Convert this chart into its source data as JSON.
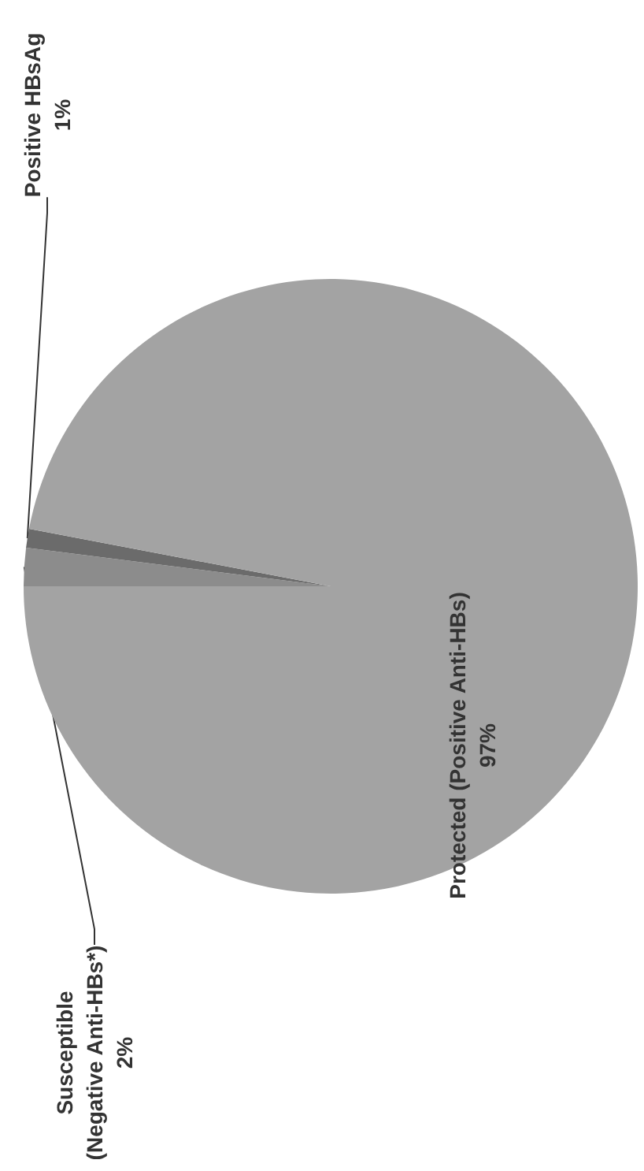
{
  "chart_data": {
    "type": "pie",
    "categories": [
      "Susceptible\n(Negative Anti-HBs*)",
      "Positive HBsAg",
      "Protected (Positive Anti-HBs)"
    ],
    "values": [
      2,
      1,
      97
    ],
    "value_labels": [
      "2%",
      "1%",
      "97%"
    ],
    "colors": [
      "#8c8c8c",
      "#6b6b6b",
      "#a3a3a3"
    ],
    "legend": false
  }
}
